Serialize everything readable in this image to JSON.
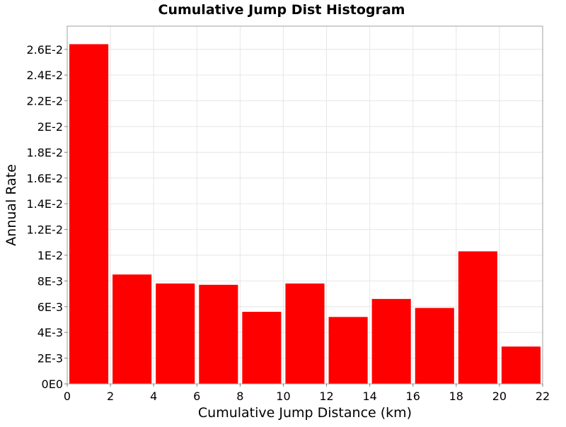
{
  "chart_data": {
    "type": "bar",
    "title": "Cumulative Jump Dist Histogram",
    "xlabel": "Cumulative Jump Distance (km)",
    "ylabel": "Annual Rate",
    "xlim": [
      0,
      22
    ],
    "ylim": [
      0,
      0.0278
    ],
    "grid": true,
    "bar_color": "#ff0000",
    "bin_width": 2,
    "x_ticks": [
      0,
      2,
      4,
      6,
      8,
      10,
      12,
      14,
      16,
      18,
      20,
      22
    ],
    "x_tick_labels": [
      "0",
      "2",
      "4",
      "6",
      "8",
      "10",
      "12",
      "14",
      "16",
      "18",
      "20",
      "22"
    ],
    "y_ticks": [
      0,
      0.002,
      0.004,
      0.006,
      0.008,
      0.01,
      0.012,
      0.014,
      0.016,
      0.018,
      0.02,
      0.022,
      0.024,
      0.026
    ],
    "y_tick_labels": [
      "0E0",
      "2E-3",
      "4E-3",
      "6E-3",
      "8E-3",
      "1E-2",
      "1.2E-2",
      "1.4E-2",
      "1.6E-2",
      "1.8E-2",
      "2E-2",
      "2.2E-2",
      "2.4E-2",
      "2.6E-2"
    ],
    "bins": [
      {
        "x_start": 0,
        "x_end": 2,
        "value": 0.0264
      },
      {
        "x_start": 2,
        "x_end": 4,
        "value": 0.0085
      },
      {
        "x_start": 4,
        "x_end": 6,
        "value": 0.0078
      },
      {
        "x_start": 6,
        "x_end": 8,
        "value": 0.0077
      },
      {
        "x_start": 8,
        "x_end": 10,
        "value": 0.0056
      },
      {
        "x_start": 10,
        "x_end": 12,
        "value": 0.0078
      },
      {
        "x_start": 12,
        "x_end": 14,
        "value": 0.0052
      },
      {
        "x_start": 14,
        "x_end": 16,
        "value": 0.0066
      },
      {
        "x_start": 16,
        "x_end": 18,
        "value": 0.0059
      },
      {
        "x_start": 18,
        "x_end": 20,
        "value": 0.0103
      },
      {
        "x_start": 20,
        "x_end": 22,
        "value": 0.0029
      }
    ]
  }
}
